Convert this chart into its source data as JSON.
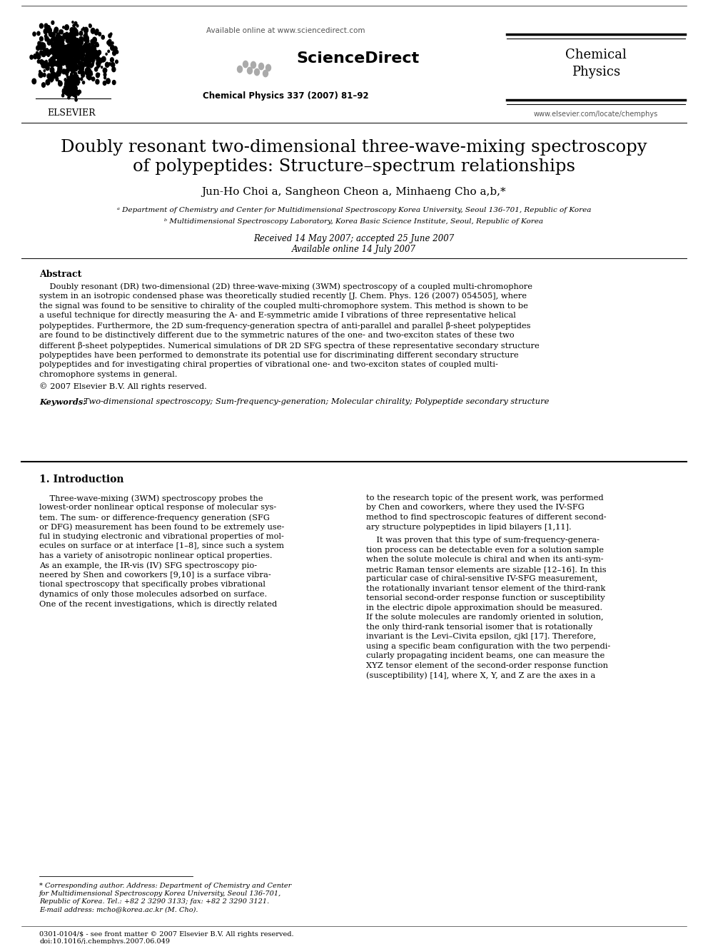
{
  "page_bg": "#ffffff",
  "header": {
    "available_online": "Available online at www.sciencedirect.com",
    "journal_name": "Chemical\nPhysics",
    "journal_citation": "Chemical Physics 337 (2007) 81–92",
    "website": "www.elsevier.com/locate/chemphys",
    "sciencedirect_text": "ScienceDirect"
  },
  "title_line1": "Doubly resonant two-dimensional three-wave-mixing spectroscopy",
  "title_line2": "of polypeptides: Structure–spectrum relationships",
  "authors": "Jun-Ho Choi a, Sangheon Cheon a, Minhaeng Cho a,b,*",
  "affil1": "ᵃ Department of Chemistry and Center for Multidimensional Spectroscopy Korea University, Seoul 136-701, Republic of Korea",
  "affil2": "ᵇ Multidimensional Spectroscopy Laboratory, Korea Basic Science Institute, Seoul, Republic of Korea",
  "received": "Received 14 May 2007; accepted 25 June 2007",
  "available": "Available online 14 July 2007",
  "abstract_title": "Abstract",
  "abstract_para": "    Doubly resonant (DR) two-dimensional (2D) three-wave-mixing (3WM) spectroscopy of a coupled multi-chromophore system in an isotropic condensed phase was theoretically studied recently [J. Chem. Phys. 126 (2007) 054505], where the signal was found to be sensitive to chirality of the coupled multi-chromophore system. This method is shown to be a useful technique for directly measuring the A- and E-symmetric amide I vibrations of three representative helical polypeptides. Furthermore, the 2D sum-frequency-generation spectra of anti-parallel and parallel β-sheet polypeptides are found to be distinctively different due to the symmetric natures of the one- and two-exciton states of these two different β-sheet polypeptides. Numerical simulations of DR 2D SFG spectra of these representative secondary structure polypeptides have been performed to demonstrate its potential use for discriminating different secondary structure polypeptides and for investigating chiral properties of vibrational one- and two-exciton states of coupled multi-chromophore systems in general.",
  "copyright": "© 2007 Elsevier B.V. All rights reserved.",
  "keywords_label": "Keywords:",
  "keywords_text": "  Two-dimensional spectroscopy; Sum-frequency-generation; Molecular chirality; Polypeptide secondary structure",
  "section1_title": "1. Introduction",
  "col1_lines": [
    "    Three-wave-mixing (3WM) spectroscopy probes the",
    "lowest-order nonlinear optical response of molecular sys-",
    "tem. The sum- or difference-frequency generation (SFG",
    "or DFG) measurement has been found to be extremely use-",
    "ful in studying electronic and vibrational properties of mol-",
    "ecules on surface or at interface [1–8], since such a system",
    "has a variety of anisotropic nonlinear optical properties.",
    "As an example, the IR-vis (IV) SFG spectroscopy pio-",
    "neered by Shen and coworkers [9,10] is a surface vibra-",
    "tional spectroscopy that specifically probes vibrational",
    "dynamics of only those molecules adsorbed on surface.",
    "One of the recent investigations, which is directly related"
  ],
  "col2_lines": [
    "to the research topic of the present work, was performed",
    "by Chen and coworkers, where they used the IV-SFG",
    "method to find spectroscopic features of different second-",
    "ary structure polypeptides in lipid bilayers [1,11].",
    "",
    "    It was proven that this type of sum-frequency-genera-",
    "tion process can be detectable even for a solution sample",
    "when the solute molecule is chiral and when its anti-sym-",
    "metric Raman tensor elements are sizable [12–16]. In this",
    "particular case of chiral-sensitive IV-SFG measurement,",
    "the rotationally invariant tensor element of the third-rank",
    "tensorial second-order response function or susceptibility",
    "in the electric dipole approximation should be measured.",
    "If the solute molecules are randomly oriented in solution,",
    "the only third-rank tensorial isomer that is rotationally",
    "invariant is the Levi–Civita epsilon, εjkl [17]. Therefore,",
    "using a specific beam configuration with the two perpendi-",
    "cularly propagating incident beams, one can measure the",
    "XYZ tensor element of the second-order response function",
    "(susceptibility) [14], where X, Y, and Z are the axes in a"
  ],
  "footnote_star": "* Corresponding author. Address: Department of Chemistry and Center for",
  "footnote_lines": [
    "* Corresponding author. Address: Department of Chemistry and Center",
    "for Multidimensional Spectroscopy Korea University, Seoul 136-701,",
    "Republic of Korea. Tel.: +82 2 3290 3133; fax: +82 2 3290 3121.",
    "E-mail address: mcho@korea.ac.kr (M. Cho)."
  ],
  "footer_lines": [
    "0301-0104/$ - see front matter © 2007 Elsevier B.V. All rights reserved.",
    "doi:10.1016/j.chemphys.2007.06.049"
  ]
}
